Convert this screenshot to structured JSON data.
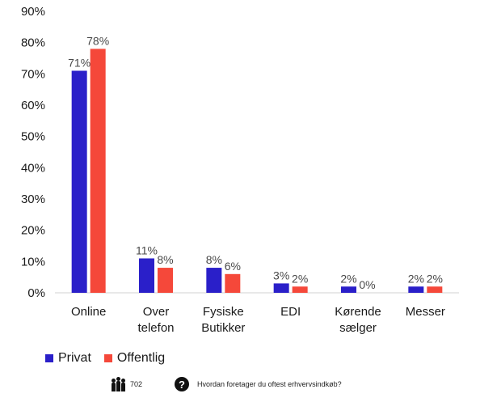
{
  "chart_data": {
    "type": "bar",
    "categories": [
      "Online",
      "Over\ntelefon",
      "Fysiske\nButikker",
      "EDI",
      "Kørende\nsælger",
      "Messer"
    ],
    "series": [
      {
        "name": "Privat",
        "color": "#2a1fc9",
        "values": [
          71,
          11,
          8,
          3,
          2,
          2
        ],
        "labels": [
          "71%",
          "11%",
          "8%",
          "3%",
          "2%",
          "2%"
        ]
      },
      {
        "name": "Offentlig",
        "color": "#f5483a",
        "values": [
          78,
          8,
          6,
          2,
          0,
          2
        ],
        "labels": [
          "78%",
          "8%",
          "6%",
          "2%",
          "0%",
          "2%"
        ]
      }
    ],
    "ylim": [
      0,
      90
    ],
    "yticks": [
      "0%",
      "10%",
      "20%",
      "30%",
      "40%",
      "50%",
      "60%",
      "70%",
      "80%",
      "90%"
    ],
    "grid": false,
    "legend_position": "bottom-left"
  },
  "footer": {
    "respondents": "702",
    "respondents_icon": "people-icon",
    "question_icon": "question-icon",
    "question": "Hvordan foretager du oftest erhvervsindkøb?"
  }
}
